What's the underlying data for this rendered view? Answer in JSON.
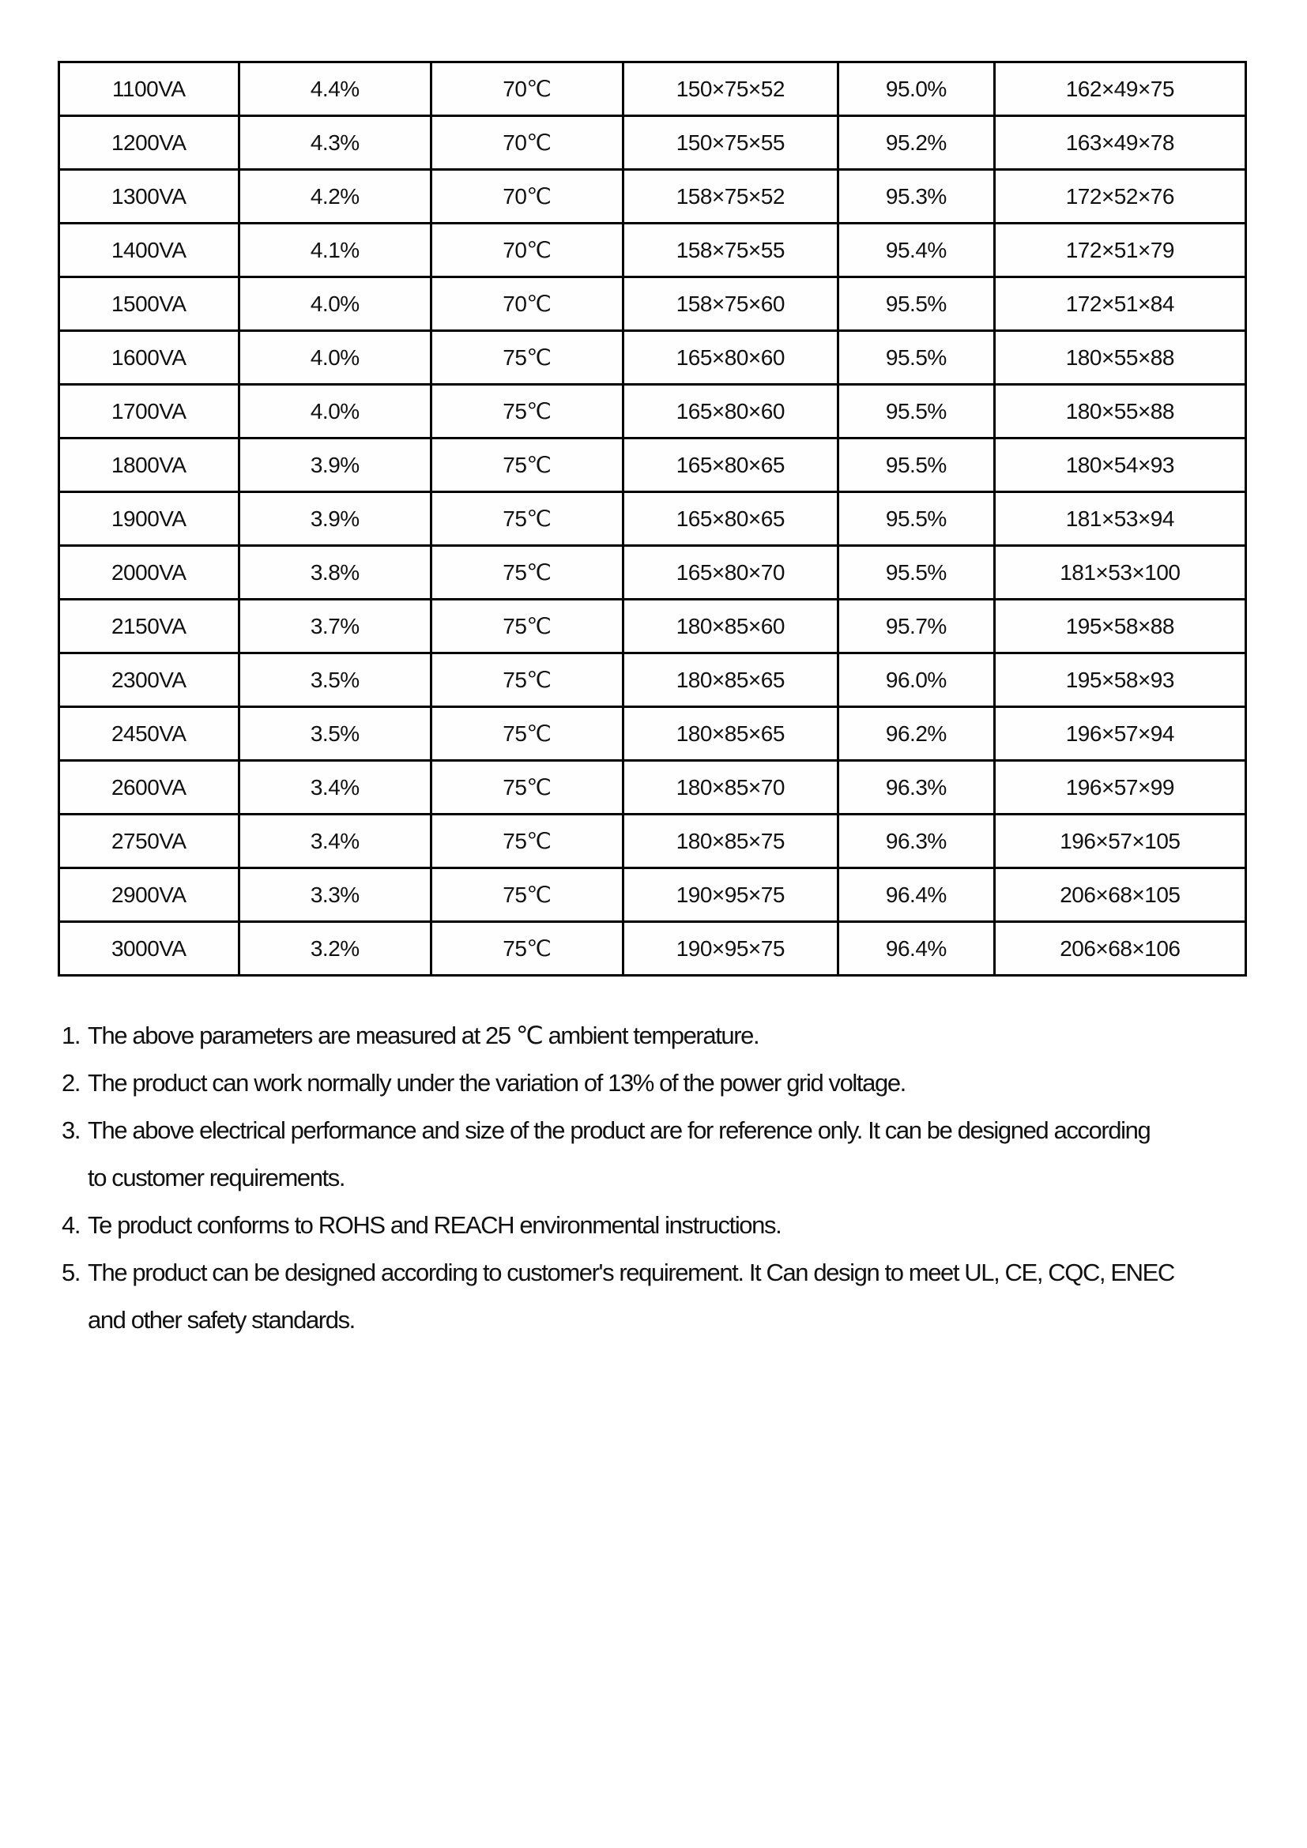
{
  "table": {
    "columns": [
      "power_rating",
      "regulation",
      "temperature_rise",
      "size_mm",
      "efficiency",
      "mounting_size_mm"
    ],
    "rows": [
      [
        "1100VA",
        "4.4%",
        "70℃",
        "150×75×52",
        "95.0%",
        "162×49×75"
      ],
      [
        "1200VA",
        "4.3%",
        "70℃",
        "150×75×55",
        "95.2%",
        "163×49×78"
      ],
      [
        "1300VA",
        "4.2%",
        "70℃",
        "158×75×52",
        "95.3%",
        "172×52×76"
      ],
      [
        "1400VA",
        "4.1%",
        "70℃",
        "158×75×55",
        "95.4%",
        "172×51×79"
      ],
      [
        "1500VA",
        "4.0%",
        "70℃",
        "158×75×60",
        "95.5%",
        "172×51×84"
      ],
      [
        "1600VA",
        "4.0%",
        "75℃",
        "165×80×60",
        "95.5%",
        "180×55×88"
      ],
      [
        "1700VA",
        "4.0%",
        "75℃",
        "165×80×60",
        "95.5%",
        "180×55×88"
      ],
      [
        "1800VA",
        "3.9%",
        "75℃",
        "165×80×65",
        "95.5%",
        "180×54×93"
      ],
      [
        "1900VA",
        "3.9%",
        "75℃",
        "165×80×65",
        "95.5%",
        "181×53×94"
      ],
      [
        "2000VA",
        "3.8%",
        "75℃",
        "165×80×70",
        "95.5%",
        "181×53×100"
      ],
      [
        "2150VA",
        "3.7%",
        "75℃",
        "180×85×60",
        "95.7%",
        "195×58×88"
      ],
      [
        "2300VA",
        "3.5%",
        "75℃",
        "180×85×65",
        "96.0%",
        "195×58×93"
      ],
      [
        "2450VA",
        "3.5%",
        "75℃",
        "180×85×65",
        "96.2%",
        "196×57×94"
      ],
      [
        "2600VA",
        "3.4%",
        "75℃",
        "180×85×70",
        "96.3%",
        "196×57×99"
      ],
      [
        "2750VA",
        "3.4%",
        "75℃",
        "180×85×75",
        "96.3%",
        "196×57×105"
      ],
      [
        "2900VA",
        "3.3%",
        "75℃",
        "190×95×75",
        "96.4%",
        "206×68×105"
      ],
      [
        "3000VA",
        "3.2%",
        "75℃",
        "190×95×75",
        "96.4%",
        "206×68×106"
      ]
    ]
  },
  "notes": [
    {
      "num": "1.",
      "lines": [
        "The above parameters are measured at 25 ℃ ambient temperature."
      ]
    },
    {
      "num": "2.",
      "lines": [
        "The product can work normally under the variation of 13% of the power grid voltage."
      ]
    },
    {
      "num": "3.",
      "lines": [
        "The above electrical performance and size of the product are for reference only. It can be designed according",
        "to customer requirements."
      ]
    },
    {
      "num": "4.",
      "lines": [
        "Te product conforms to ROHS and REACH environmental instructions."
      ]
    },
    {
      "num": "5.",
      "lines": [
        "The product can be designed according to customer's requirement. It Can design to meet UL, CE, CQC, ENEC",
        "and other safety standards."
      ]
    }
  ],
  "colors": {
    "border": "#000000",
    "text": "#111111",
    "background": "#ffffff"
  }
}
